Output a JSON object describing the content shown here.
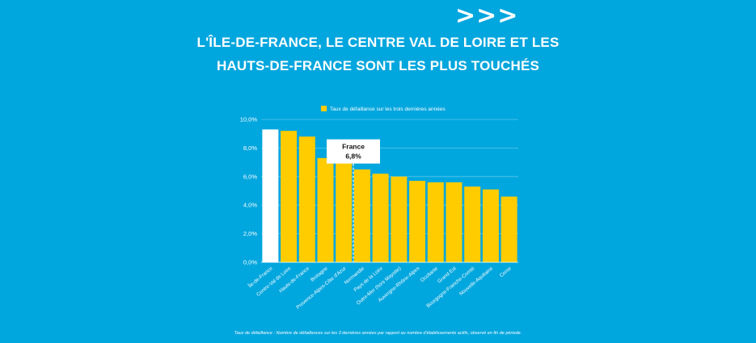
{
  "decoration": {
    "chevrons": ">>>"
  },
  "title": {
    "line1": "L'ÎLE-DE-FRANCE, LE CENTRE VAL DE LOIRE ET LES",
    "line2": "HAUTS-DE-FRANCE SONT LES PLUS TOUCHÉS"
  },
  "footnote": "Taux de défaillance : Nombre de défaillances sur les 3 dernières années par rapport au nombre d'établissements actifs, observé en fin de période.",
  "chart_data": {
    "type": "bar",
    "categories": [
      "Île-de-France",
      "Centre-Val de Loire",
      "Hauts-de-France",
      "Bretagne",
      "Provence-Alpes-Côte d'Azur",
      "Normandie",
      "Pays de la Loire",
      "Outre-Mer (hors Mayotte)",
      "Auvergne-Rhône-Alpes",
      "Occitanie",
      "Grand Est",
      "Bourgogne-Franche-Comté",
      "Nouvelle-Aquitaine",
      "Corse"
    ],
    "values": [
      9.3,
      9.2,
      8.8,
      7.3,
      7.1,
      6.5,
      6.2,
      6.0,
      5.7,
      5.6,
      5.6,
      5.3,
      5.1,
      4.6
    ],
    "legend": {
      "label": "Taux de défaillance sur les trois dernières années",
      "placement": "top"
    },
    "yticks": [
      "0,0%",
      "2,0%",
      "4,0%",
      "6,0%",
      "8,0%",
      "10,0%"
    ],
    "ylim": [
      0,
      10
    ],
    "grid": true,
    "highlight": {
      "category": "Île-de-France",
      "color": "#ffffff"
    },
    "reference": {
      "label": "France",
      "value_label": "6,8%",
      "value": 6.8
    },
    "colors": {
      "bar": "#ffcc00",
      "highlight": "#ffffff",
      "background": "#00a6de",
      "grid": "#5cc7ea"
    }
  }
}
